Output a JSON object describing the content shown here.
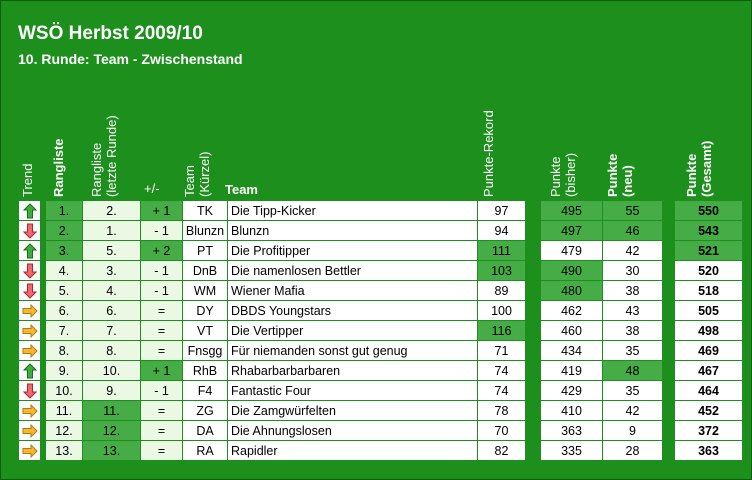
{
  "title": "WSÖ Herbst 2009/10",
  "subtitle": "10. Runde: Team - Zwischenstand",
  "headers": {
    "trend": "Trend",
    "rang": "Rangliste",
    "rang_last": "Rangliste",
    "rang_last2": "(letzte Runde)",
    "diff": "+/-",
    "team_short": "Team",
    "team_short2": "(Kürzel)",
    "team": "Team",
    "rekord": "Punkte-Rekord",
    "bisher": "Punkte",
    "bisher2": "(bisher)",
    "neu": "Punkte",
    "neu2": "(neu)",
    "gesamt": "Punkte",
    "gesamt2": "(Gesamt)"
  },
  "colors": {
    "up": "#2e8b2e",
    "down": "#e8555a",
    "same": "#f5a623",
    "green": "#1d8f1d"
  },
  "rows": [
    {
      "trend": "up",
      "rank": "1.",
      "last": "2.",
      "diff": "+ 1",
      "short": "TK",
      "team": "Die Tipp-Kicker",
      "rekord": "97",
      "bisher": "495",
      "neu": "55",
      "gesamt": "550"
    },
    {
      "trend": "down",
      "rank": "2.",
      "last": "1.",
      "diff": "- 1",
      "short": "Blunzn",
      "team": "Blunzn",
      "rekord": "94",
      "bisher": "497",
      "neu": "46",
      "gesamt": "543"
    },
    {
      "trend": "up",
      "rank": "3.",
      "last": "5.",
      "diff": "+ 2",
      "short": "PT",
      "team": "Die Profitipper",
      "rekord": "111",
      "bisher": "479",
      "neu": "42",
      "gesamt": "521"
    },
    {
      "trend": "down",
      "rank": "4.",
      "last": "3.",
      "diff": "- 1",
      "short": "DnB",
      "team": "Die namenlosen Bettler",
      "rekord": "103",
      "bisher": "490",
      "neu": "30",
      "gesamt": "520"
    },
    {
      "trend": "down",
      "rank": "5.",
      "last": "4.",
      "diff": "- 1",
      "short": "WM",
      "team": "Wiener Mafia",
      "rekord": "89",
      "bisher": "480",
      "neu": "38",
      "gesamt": "518"
    },
    {
      "trend": "same",
      "rank": "6.",
      "last": "6.",
      "diff": "=",
      "short": "DY",
      "team": "DBDS Youngstars",
      "rekord": "100",
      "bisher": "462",
      "neu": "43",
      "gesamt": "505"
    },
    {
      "trend": "same",
      "rank": "7.",
      "last": "7.",
      "diff": "=",
      "short": "VT",
      "team": "Die Vertipper",
      "rekord": "116",
      "bisher": "460",
      "neu": "38",
      "gesamt": "498"
    },
    {
      "trend": "same",
      "rank": "8.",
      "last": "8.",
      "diff": "=",
      "short": "Fnsgg",
      "team": "Für niemanden sonst gut genug",
      "rekord": "71",
      "bisher": "434",
      "neu": "35",
      "gesamt": "469"
    },
    {
      "trend": "up",
      "rank": "9.",
      "last": "10.",
      "diff": "+ 1",
      "short": "RhB",
      "team": "Rhabarbarbarbaren",
      "rekord": "74",
      "bisher": "419",
      "neu": "48",
      "gesamt": "467"
    },
    {
      "trend": "down",
      "rank": "10.",
      "last": "9.",
      "diff": "- 1",
      "short": "F4",
      "team": "Fantastic Four",
      "rekord": "74",
      "bisher": "429",
      "neu": "35",
      "gesamt": "464"
    },
    {
      "trend": "same",
      "rank": "11.",
      "last": "11.",
      "diff": "=",
      "short": "ZG",
      "team": "Die Zamgwürfelten",
      "rekord": "78",
      "bisher": "410",
      "neu": "42",
      "gesamt": "452"
    },
    {
      "trend": "same",
      "rank": "12.",
      "last": "12.",
      "diff": "=",
      "short": "DA",
      "team": "Die Ahnungslosen",
      "rekord": "70",
      "bisher": "363",
      "neu": "9",
      "gesamt": "372"
    },
    {
      "trend": "same",
      "rank": "13.",
      "last": "13.",
      "diff": "=",
      "short": "RA",
      "team": "Rapidler",
      "rekord": "82",
      "bisher": "335",
      "neu": "28",
      "gesamt": "363"
    }
  ]
}
